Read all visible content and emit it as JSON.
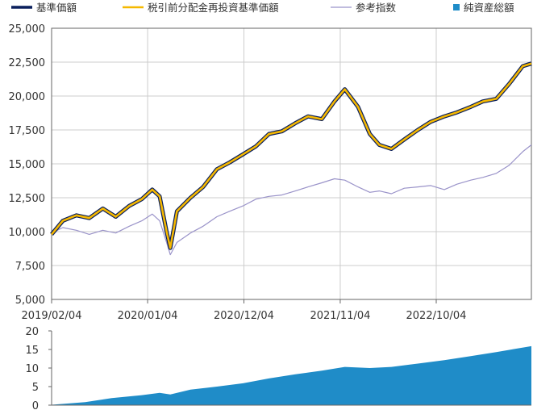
{
  "legend": [
    {
      "label": "基準価額",
      "color": "#0a1f5c",
      "kind": "line-thick"
    },
    {
      "label": "税引前分配金再投資基準価額",
      "color": "#f5b800",
      "kind": "line"
    },
    {
      "label": "参考指数",
      "color": "#9a93c9",
      "kind": "line-thin"
    },
    {
      "label": "純資産総額",
      "color": "#1f8cc8",
      "kind": "square"
    }
  ],
  "colors": {
    "nav": "#0a1f5c",
    "reinvested": "#f5b800",
    "benchmark": "#9a93c9",
    "net_assets": "#1f8cc8",
    "grid": "#cccccc",
    "axis": "#666666"
  },
  "chart_data": [
    {
      "type": "line",
      "title": "",
      "xlabel": "",
      "ylabel": "",
      "x_ticks": [
        "2019/02/04",
        "2020/01/04",
        "2020/12/04",
        "2021/11/04",
        "2022/10/04"
      ],
      "y_ticks": [
        "5,000",
        "7,500",
        "10,000",
        "12,500",
        "15,000",
        "17,500",
        "20,000",
        "22,500",
        "25,000"
      ],
      "ylim": [
        5000,
        25000
      ],
      "xlim": [
        "2019/02/04",
        "2023/08/31"
      ],
      "grid": true,
      "legend_position": "top",
      "x": [
        "2019/02/04",
        "2019/03/15",
        "2019/05/01",
        "2019/06/15",
        "2019/08/01",
        "2019/09/15",
        "2019/11/01",
        "2019/12/15",
        "2020/01/20",
        "2020/02/15",
        "2020/03/10",
        "2020/03/23",
        "2020/04/15",
        "2020/06/01",
        "2020/07/15",
        "2020/09/01",
        "2020/10/15",
        "2020/12/01",
        "2021/01/15",
        "2021/03/01",
        "2021/04/15",
        "2021/06/01",
        "2021/07/15",
        "2021/09/01",
        "2021/10/15",
        "2021/11/20",
        "2022/01/05",
        "2022/02/15",
        "2022/03/20",
        "2022/05/01",
        "2022/06/15",
        "2022/08/01",
        "2022/09/15",
        "2022/11/01",
        "2022/12/15",
        "2023/02/01",
        "2023/03/15",
        "2023/05/01",
        "2023/06/15",
        "2023/08/01",
        "2023/08/31"
      ],
      "series": [
        {
          "name": "基準価額",
          "values": [
            9800,
            10800,
            11200,
            11000,
            11700,
            11100,
            11900,
            12400,
            13100,
            12600,
            10000,
            8800,
            11500,
            12500,
            13300,
            14600,
            15100,
            15700,
            16300,
            17200,
            17400,
            18000,
            18500,
            18300,
            19600,
            20500,
            19200,
            17200,
            16400,
            16100,
            16800,
            17500,
            18100,
            18500,
            18800,
            19200,
            19600,
            19800,
            20900,
            22200,
            22400
          ]
        },
        {
          "name": "税引前分配金再投資基準価額",
          "values": [
            9800,
            10800,
            11200,
            11000,
            11700,
            11100,
            11900,
            12400,
            13100,
            12600,
            10000,
            8800,
            11500,
            12500,
            13300,
            14600,
            15100,
            15700,
            16300,
            17200,
            17400,
            18000,
            18500,
            18300,
            19600,
            20500,
            19200,
            17200,
            16400,
            16100,
            16800,
            17500,
            18100,
            18500,
            18800,
            19200,
            19600,
            19800,
            20900,
            22200,
            22400
          ]
        },
        {
          "name": "参考指数",
          "values": [
            9900,
            10300,
            10100,
            9800,
            10100,
            9900,
            10400,
            10800,
            11300,
            10800,
            9200,
            8300,
            9200,
            9900,
            10400,
            11100,
            11500,
            11900,
            12400,
            12600,
            12700,
            13000,
            13300,
            13600,
            13900,
            13800,
            13300,
            12900,
            13000,
            12800,
            13200,
            13300,
            13400,
            13100,
            13500,
            13800,
            14000,
            14300,
            14900,
            15900,
            16400
          ]
        }
      ]
    },
    {
      "type": "area",
      "title": "",
      "xlabel": "",
      "ylabel": "",
      "y_ticks": [
        "0",
        "5",
        "10",
        "15",
        "20"
      ],
      "ylim": [
        0,
        20
      ],
      "grid": false,
      "x": [
        "2019/02/04",
        "2019/06/01",
        "2019/09/01",
        "2019/12/15",
        "2020/02/15",
        "2020/03/23",
        "2020/06/01",
        "2020/09/01",
        "2020/12/01",
        "2021/03/01",
        "2021/06/01",
        "2021/09/01",
        "2021/11/20",
        "2022/02/15",
        "2022/05/01",
        "2022/08/01",
        "2022/11/01",
        "2023/02/01",
        "2023/05/01",
        "2023/08/31"
      ],
      "series": [
        {
          "name": "純資産総額",
          "values": [
            0.1,
            0.8,
            1.9,
            2.7,
            3.3,
            2.9,
            4.2,
            5.0,
            5.9,
            7.2,
            8.3,
            9.3,
            10.3,
            10.0,
            10.3,
            11.2,
            12.1,
            13.2,
            14.3,
            15.9
          ]
        }
      ]
    }
  ]
}
